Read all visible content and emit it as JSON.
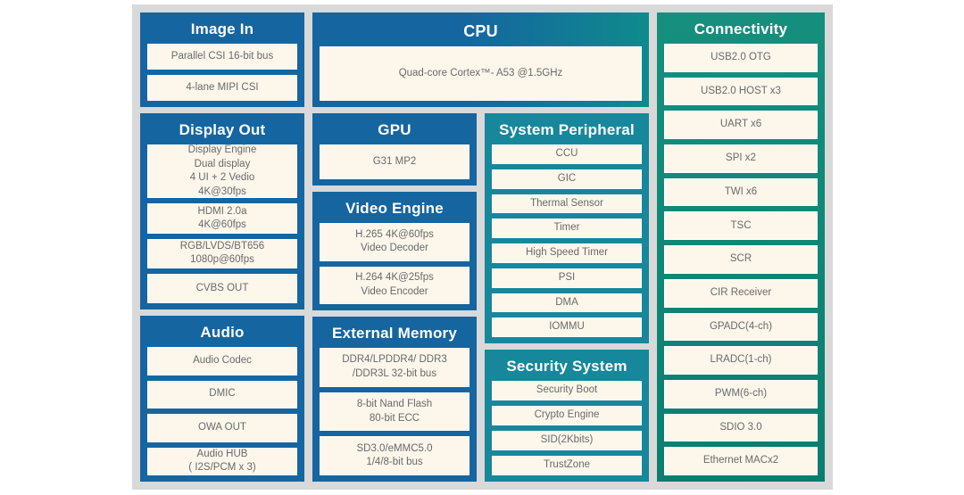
{
  "panel": {
    "colors": {
      "blue": "#1565a0",
      "teal": "#17879b",
      "cpu_start": "#1565a0",
      "cpu_end": "#0e8b8d",
      "green_start": "#16907e",
      "green_end": "#0a7d6f",
      "panel_bg": "#d9d9d9",
      "item_bg": "#fdf6eb",
      "item_text": "#6a6a6a",
      "header_text": "#ffffff"
    },
    "blocks": {
      "image_in": {
        "title": "Image In",
        "items": [
          "Parallel CSI 16-bit bus",
          "4-lane MIPI CSI"
        ]
      },
      "display_out": {
        "title": "Display Out",
        "items": [
          "Display Engine\nDual display\n4 UI + 2 Vedio\n4K@30fps",
          "HDMI 2.0a\n4K@60fps",
          "RGB/LVDS/BT656\n1080p@60fps",
          "CVBS OUT"
        ]
      },
      "audio": {
        "title": "Audio",
        "items": [
          "Audio Codec",
          "DMIC",
          "OWA OUT",
          "Audio HUB\n( I2S/PCM x 3)"
        ]
      },
      "cpu": {
        "title": "CPU",
        "items": [
          "Quad-core Cortex™- A53 @1.5GHz"
        ]
      },
      "gpu": {
        "title": "GPU",
        "items": [
          "G31 MP2"
        ]
      },
      "video_engine": {
        "title": "Video Engine",
        "items": [
          "H.265 4K@60fps\nVideo Decoder",
          "H.264 4K@25fps\nVideo Encoder"
        ]
      },
      "external_memory": {
        "title": "External Memory",
        "items": [
          "DDR4/LPDDR4/ DDR3\n/DDR3L 32-bit bus",
          "8-bit Nand Flash\n80-bit ECC",
          "SD3.0/eMMC5.0\n1/4/8-bit bus"
        ]
      },
      "system_peripheral": {
        "title": "System Peripheral",
        "items": [
          "CCU",
          "GIC",
          "Thermal Sensor",
          "Timer",
          "High Speed Timer",
          "PSI",
          "DMA",
          "IOMMU"
        ]
      },
      "security_system": {
        "title": "Security System",
        "items": [
          "Security Boot",
          "Crypto Engine",
          "SID(2Kbits)",
          "TrustZone"
        ]
      },
      "connectivity": {
        "title": "Connectivity",
        "items": [
          "USB2.0 OTG",
          "USB2.0 HOST x3",
          "UART x6",
          "SPI x2",
          "TWI x6",
          "TSC",
          "SCR",
          "CIR Receiver",
          "GPADC(4-ch)",
          "LRADC(1-ch)",
          "PWM(6-ch)",
          "SDIO 3.0",
          "Ethernet MACx2"
        ]
      }
    }
  }
}
